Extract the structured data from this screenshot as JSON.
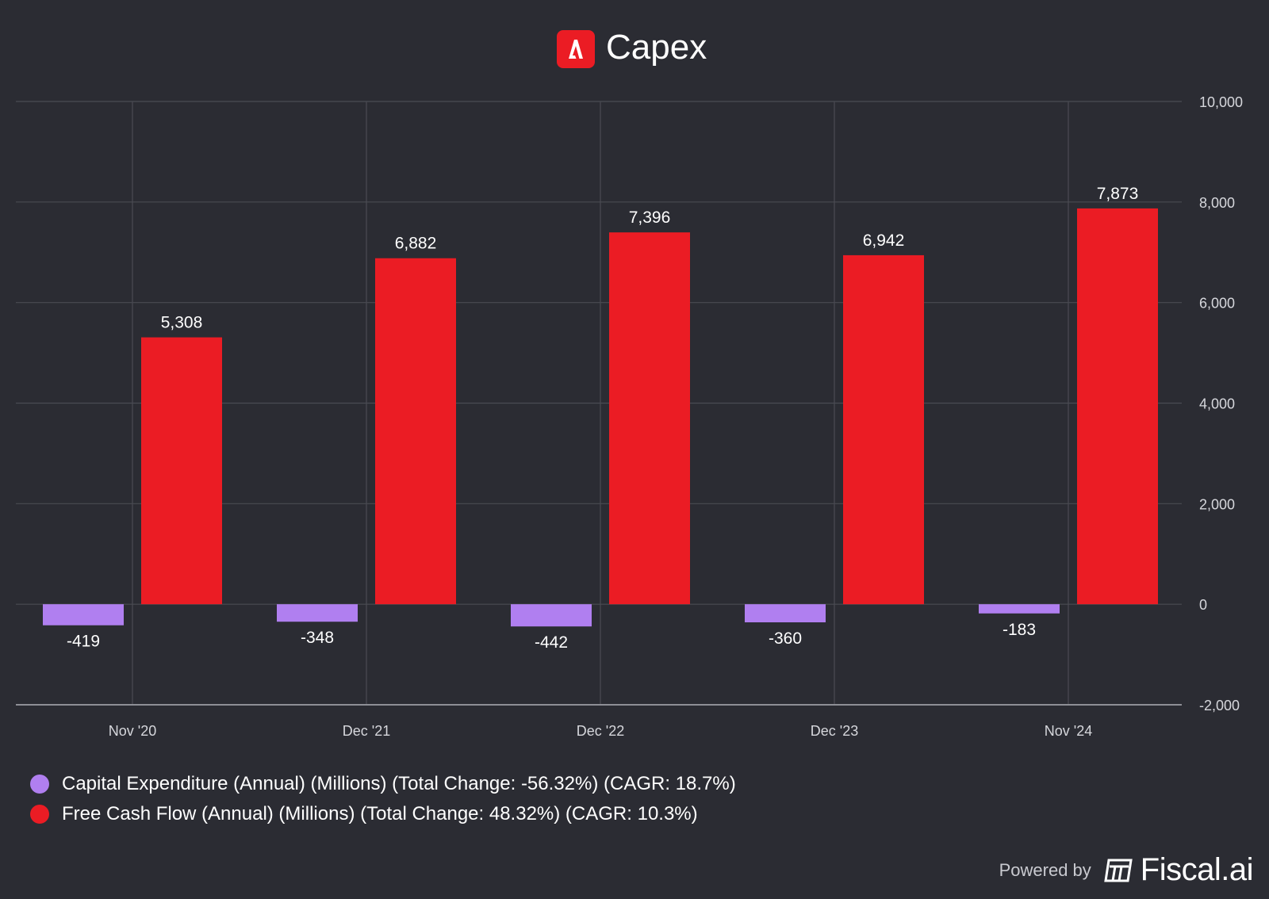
{
  "header": {
    "title": "Capex",
    "logo_name": "adobe-logo"
  },
  "chart_data": {
    "type": "bar",
    "title": "Capex",
    "categories": [
      "Nov '20",
      "Dec '21",
      "Dec '22",
      "Dec '23",
      "Nov '24"
    ],
    "series": [
      {
        "name": "Capital Expenditure (Annual) (Millions) (Total Change: -56.32%) (CAGR: 18.7%)",
        "color": "#b07ff0",
        "values": [
          -419,
          -348,
          -442,
          -360,
          -183
        ],
        "labels": [
          "-419",
          "-348",
          "-442",
          "-360",
          "-183"
        ]
      },
      {
        "name": "Free Cash Flow (Annual) (Millions) (Total Change: 48.32%) (CAGR: 10.3%)",
        "color": "#eb1c24",
        "values": [
          5308,
          6882,
          7396,
          6942,
          7873
        ],
        "labels": [
          "5,308",
          "6,882",
          "7,396",
          "6,942",
          "7,873"
        ]
      }
    ],
    "ylim": [
      -2000,
      10000
    ],
    "yticks": [
      10000,
      8000,
      6000,
      4000,
      2000,
      0,
      -2000
    ],
    "ytick_labels": [
      "10,000",
      "8,000",
      "6,000",
      "4,000",
      "2,000",
      "0",
      "-2,000"
    ],
    "xlabel": "",
    "ylabel": "",
    "grid": true,
    "legend_position": "bottom-left"
  },
  "footer": {
    "powered_by": "Powered by",
    "brand": "Fiscal.ai"
  }
}
